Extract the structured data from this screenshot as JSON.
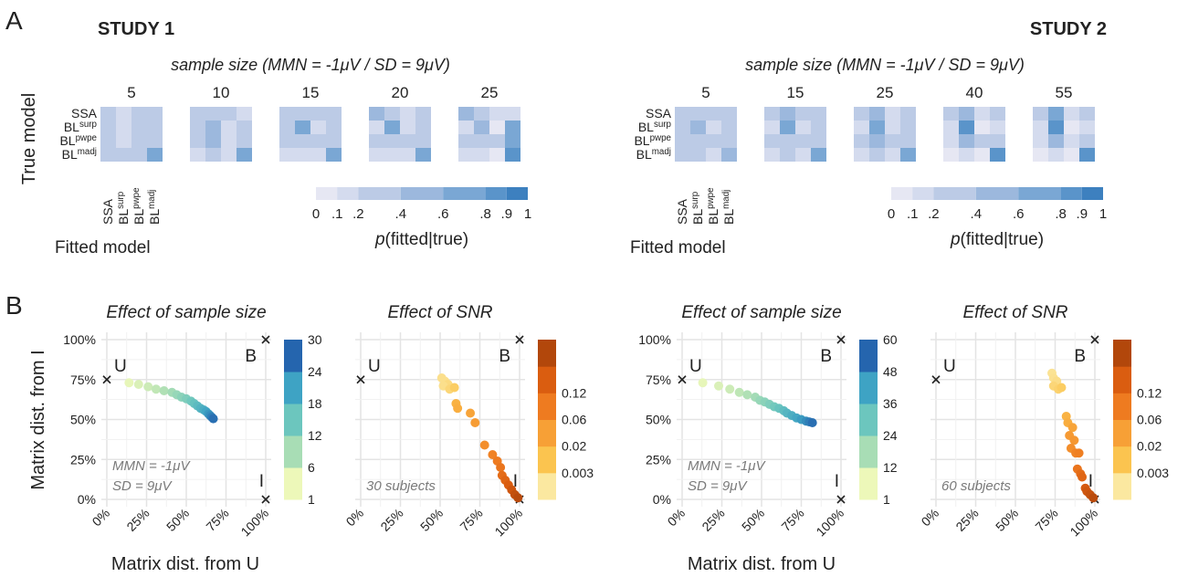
{
  "panel_labels": {
    "a": "A",
    "b": "B"
  },
  "chart_data": [
    {
      "type": "heatmap",
      "study": "STUDY 1",
      "title": "sample size (MMN = -1μV / SD = 9μV)",
      "ylabel": "True model",
      "xlabel": "Fitted model",
      "models": [
        {
          "base": "SSA",
          "sup": ""
        },
        {
          "base": "BL",
          "sup": "surp"
        },
        {
          "base": "BL",
          "sup": "pwpe"
        },
        {
          "base": "BL",
          "sup": "madj"
        }
      ],
      "sample_sizes": [
        "5",
        "10",
        "15",
        "20",
        "25"
      ],
      "matrices": [
        [
          [
            0.3,
            0.15,
            0.3,
            0.3
          ],
          [
            0.3,
            0.15,
            0.3,
            0.3
          ],
          [
            0.3,
            0.15,
            0.3,
            0.3
          ],
          [
            0.2,
            0.2,
            0.2,
            0.6
          ]
        ],
        [
          [
            0.3,
            0.3,
            0.2,
            0.15
          ],
          [
            0.2,
            0.45,
            0.15,
            0.2
          ],
          [
            0.2,
            0.45,
            0.15,
            0.2
          ],
          [
            0.15,
            0.2,
            0.15,
            0.65
          ]
        ],
        [
          [
            0.3,
            0.3,
            0.2,
            0.3
          ],
          [
            0.2,
            0.6,
            0.1,
            0.2
          ],
          [
            0.25,
            0.35,
            0.2,
            0.25
          ],
          [
            0.1,
            0.15,
            0.1,
            0.7
          ]
        ],
        [
          [
            0.5,
            0.25,
            0.1,
            0.2
          ],
          [
            0.15,
            0.6,
            0.1,
            0.2
          ],
          [
            0.3,
            0.35,
            0.2,
            0.2
          ],
          [
            0.1,
            0.15,
            0.1,
            0.7
          ]
        ],
        [
          [
            0.55,
            0.25,
            0.1,
            0.15
          ],
          [
            0.15,
            0.55,
            0.05,
            0.6
          ],
          [
            0.3,
            0.3,
            0.2,
            0.6
          ],
          [
            0.1,
            0.1,
            0.05,
            0.8
          ]
        ]
      ],
      "colorbar": {
        "label_italic": "p",
        "label_rest": "(fitted|true)",
        "breaks": [
          0,
          0.1,
          0.2,
          0.4,
          0.6,
          0.8,
          0.9,
          1
        ],
        "ticks": [
          "0",
          ".1",
          ".2",
          ".4",
          ".6",
          ".8",
          ".9",
          "1"
        ],
        "colors": [
          "#e6e7f3",
          "#d4dbee",
          "#bccbe6",
          "#9cb8dd",
          "#7aa7d4",
          "#5a94ca",
          "#3d80bf"
        ]
      }
    },
    {
      "type": "heatmap",
      "study": "STUDY 2",
      "title": "sample size (MMN = -1μV / SD = 9μV)",
      "ylabel": "",
      "xlabel": "Fitted model",
      "models": [
        {
          "base": "SSA",
          "sup": ""
        },
        {
          "base": "BL",
          "sup": "surp"
        },
        {
          "base": "BL",
          "sup": "pwpe"
        },
        {
          "base": "BL",
          "sup": "madj"
        }
      ],
      "sample_sizes": [
        "5",
        "15",
        "25",
        "40",
        "55"
      ],
      "matrices": [
        [
          [
            0.2,
            0.3,
            0.2,
            0.2
          ],
          [
            0.2,
            0.4,
            0.15,
            0.2
          ],
          [
            0.25,
            0.25,
            0.25,
            0.2
          ],
          [
            0.2,
            0.2,
            0.1,
            0.4
          ]
        ],
        [
          [
            0.2,
            0.4,
            0.2,
            0.3
          ],
          [
            0.15,
            0.6,
            0.1,
            0.2
          ],
          [
            0.2,
            0.35,
            0.2,
            0.2
          ],
          [
            0.1,
            0.2,
            0.1,
            0.65
          ]
        ],
        [
          [
            0.2,
            0.4,
            0.1,
            0.2
          ],
          [
            0.15,
            0.6,
            0.1,
            0.2
          ],
          [
            0.2,
            0.5,
            0.25,
            0.2
          ],
          [
            0.1,
            0.2,
            0.1,
            0.7
          ]
        ],
        [
          [
            0.2,
            0.55,
            0.1,
            0.2
          ],
          [
            0.1,
            0.85,
            0.05,
            0.1
          ],
          [
            0.15,
            0.5,
            0.2,
            0.2
          ],
          [
            0.05,
            0.15,
            0.05,
            0.8
          ]
        ],
        [
          [
            0.2,
            0.7,
            0.1,
            0.2
          ],
          [
            0.1,
            0.85,
            0.05,
            0.1
          ],
          [
            0.1,
            0.55,
            0.15,
            0.2
          ],
          [
            0.05,
            0.1,
            0.05,
            0.85
          ]
        ]
      ],
      "colorbar": {
        "label_italic": "p",
        "label_rest": "(fitted|true)",
        "breaks": [
          0,
          0.1,
          0.2,
          0.4,
          0.6,
          0.8,
          0.9,
          1
        ],
        "ticks": [
          "0",
          ".1",
          ".2",
          ".4",
          ".6",
          ".8",
          ".9",
          "1"
        ],
        "colors": [
          "#e6e7f3",
          "#d4dbee",
          "#bccbe6",
          "#9cb8dd",
          "#7aa7d4",
          "#5a94ca",
          "#3d80bf"
        ]
      }
    },
    {
      "type": "scatter",
      "title": "Effect of sample size",
      "xlabel": "Matrix dist. from U",
      "ylabel": "Matrix dist. from I",
      "xticks": [
        "0%",
        "25%",
        "50%",
        "75%",
        "100%"
      ],
      "yticks": [
        "0%",
        "25%",
        "50%",
        "75%",
        "100%"
      ],
      "xlim": [
        0,
        100
      ],
      "ylim": [
        0,
        100
      ],
      "vertices": [
        {
          "name": "U",
          "x": 0,
          "y": 75
        },
        {
          "name": "B",
          "x": 100,
          "y": 100
        },
        {
          "name": "I",
          "x": 100,
          "y": 0
        }
      ],
      "annotation": [
        "MMN = -1μV",
        "SD = 9μV"
      ],
      "colorbar": {
        "ticks": [
          "1",
          "6",
          "12",
          "18",
          "24",
          "30"
        ],
        "colors": [
          "#edf8b9",
          "#a8ddb5",
          "#6cc6be",
          "#3ea3c4",
          "#2565ae"
        ]
      },
      "points": [
        {
          "x": 14,
          "y": 73,
          "c": 0.02
        },
        {
          "x": 20,
          "y": 72,
          "c": 0.07
        },
        {
          "x": 26,
          "y": 70.5,
          "c": 0.12
        },
        {
          "x": 31,
          "y": 69,
          "c": 0.16
        },
        {
          "x": 36,
          "y": 68,
          "c": 0.22
        },
        {
          "x": 41,
          "y": 67,
          "c": 0.27
        },
        {
          "x": 44,
          "y": 65.5,
          "c": 0.32
        },
        {
          "x": 47,
          "y": 64,
          "c": 0.37
        },
        {
          "x": 50,
          "y": 63,
          "c": 0.42
        },
        {
          "x": 53,
          "y": 61.5,
          "c": 0.48
        },
        {
          "x": 55,
          "y": 60,
          "c": 0.53
        },
        {
          "x": 57,
          "y": 58.5,
          "c": 0.58
        },
        {
          "x": 59,
          "y": 57,
          "c": 0.63
        },
        {
          "x": 61,
          "y": 56,
          "c": 0.68
        },
        {
          "x": 62.5,
          "y": 55,
          "c": 0.73
        },
        {
          "x": 64,
          "y": 53.5,
          "c": 0.79
        },
        {
          "x": 65,
          "y": 52.5,
          "c": 0.84
        },
        {
          "x": 66,
          "y": 51.5,
          "c": 0.9
        },
        {
          "x": 67,
          "y": 50.5,
          "c": 0.96
        }
      ]
    },
    {
      "type": "scatter",
      "title": "Effect of SNR",
      "xlabel": "",
      "ylabel": "",
      "xticks": [
        "0%",
        "25%",
        "50%",
        "75%",
        "100%"
      ],
      "yticks": [],
      "xlim": [
        0,
        100
      ],
      "ylim": [
        0,
        100
      ],
      "vertices": [
        {
          "name": "U",
          "x": 0,
          "y": 75
        },
        {
          "name": "B",
          "x": 100,
          "y": 100
        },
        {
          "name": "I",
          "x": 100,
          "y": 0
        }
      ],
      "annotation": [
        "30 subjects"
      ],
      "colorbar": {
        "ticks": [
          "0.003",
          "0.02",
          "0.06",
          "0.12"
        ],
        "colors": [
          "#fbe8a0",
          "#fbc44f",
          "#f7a036",
          "#ee7b20",
          "#da5d10",
          "#b2470b"
        ]
      },
      "points": [
        {
          "x": 51,
          "y": 76,
          "c": 0.05
        },
        {
          "x": 53,
          "y": 74,
          "c": 0.05
        },
        {
          "x": 55,
          "y": 72,
          "c": 0.08
        },
        {
          "x": 52,
          "y": 71,
          "c": 0.05
        },
        {
          "x": 56,
          "y": 69,
          "c": 0.1
        },
        {
          "x": 59,
          "y": 70,
          "c": 0.15
        },
        {
          "x": 60,
          "y": 60,
          "c": 0.3
        },
        {
          "x": 61,
          "y": 57,
          "c": 0.32
        },
        {
          "x": 69,
          "y": 54,
          "c": 0.38
        },
        {
          "x": 72,
          "y": 48,
          "c": 0.42
        },
        {
          "x": 78,
          "y": 34,
          "c": 0.5
        },
        {
          "x": 83,
          "y": 28,
          "c": 0.56
        },
        {
          "x": 86,
          "y": 24,
          "c": 0.6
        },
        {
          "x": 88,
          "y": 20,
          "c": 0.64
        },
        {
          "x": 89,
          "y": 15,
          "c": 0.7
        },
        {
          "x": 91,
          "y": 12,
          "c": 0.75
        },
        {
          "x": 93,
          "y": 9,
          "c": 0.8
        },
        {
          "x": 95,
          "y": 6,
          "c": 0.86
        },
        {
          "x": 97,
          "y": 3,
          "c": 0.92
        },
        {
          "x": 99,
          "y": 1,
          "c": 0.97
        }
      ]
    },
    {
      "type": "scatter",
      "title": "Effect of sample size",
      "xlabel": "Matrix dist. from U",
      "ylabel": "",
      "xticks": [
        "0%",
        "25%",
        "50%",
        "75%",
        "100%"
      ],
      "yticks": [
        "0%",
        "25%",
        "50%",
        "75%",
        "100%"
      ],
      "xlim": [
        0,
        100
      ],
      "ylim": [
        0,
        100
      ],
      "vertices": [
        {
          "name": "U",
          "x": 0,
          "y": 75
        },
        {
          "name": "B",
          "x": 100,
          "y": 100
        },
        {
          "name": "I",
          "x": 100,
          "y": 0
        }
      ],
      "annotation": [
        "MMN = -1μV",
        "SD = 9μV"
      ],
      "colorbar": {
        "ticks": [
          "1",
          "12",
          "24",
          "36",
          "48",
          "60"
        ],
        "colors": [
          "#edf8b9",
          "#a8ddb5",
          "#6cc6be",
          "#3ea3c4",
          "#2565ae"
        ]
      },
      "points": [
        {
          "x": 13,
          "y": 73,
          "c": 0.02
        },
        {
          "x": 23,
          "y": 71,
          "c": 0.07
        },
        {
          "x": 30,
          "y": 69,
          "c": 0.12
        },
        {
          "x": 36,
          "y": 67,
          "c": 0.17
        },
        {
          "x": 41,
          "y": 65.5,
          "c": 0.22
        },
        {
          "x": 46,
          "y": 64,
          "c": 0.27
        },
        {
          "x": 49,
          "y": 62,
          "c": 0.32
        },
        {
          "x": 52,
          "y": 61,
          "c": 0.37
        },
        {
          "x": 55,
          "y": 59.5,
          "c": 0.42
        },
        {
          "x": 58,
          "y": 58,
          "c": 0.47
        },
        {
          "x": 61,
          "y": 57,
          "c": 0.52
        },
        {
          "x": 64,
          "y": 55.5,
          "c": 0.57
        },
        {
          "x": 66,
          "y": 54,
          "c": 0.62
        },
        {
          "x": 69,
          "y": 52.5,
          "c": 0.67
        },
        {
          "x": 72,
          "y": 51,
          "c": 0.72
        },
        {
          "x": 75,
          "y": 50,
          "c": 0.78
        },
        {
          "x": 78,
          "y": 49,
          "c": 0.84
        },
        {
          "x": 80,
          "y": 48.5,
          "c": 0.9
        },
        {
          "x": 82,
          "y": 48,
          "c": 0.96
        }
      ]
    },
    {
      "type": "scatter",
      "title": "Effect of SNR",
      "xlabel": "",
      "ylabel": "",
      "xticks": [
        "0%",
        "25%",
        "50%",
        "75%",
        "100%"
      ],
      "yticks": [],
      "xlim": [
        0,
        100
      ],
      "ylim": [
        0,
        100
      ],
      "vertices": [
        {
          "name": "U",
          "x": 0,
          "y": 75
        },
        {
          "name": "B",
          "x": 100,
          "y": 100
        },
        {
          "name": "I",
          "x": 100,
          "y": 0
        }
      ],
      "annotation": [
        "60 subjects"
      ],
      "colorbar": {
        "ticks": [
          "0.003",
          "0.02",
          "0.06",
          "0.12"
        ],
        "colors": [
          "#fbe8a0",
          "#fbc44f",
          "#f7a036",
          "#ee7b20",
          "#da5d10",
          "#b2470b"
        ]
      },
      "points": [
        {
          "x": 73,
          "y": 79,
          "c": 0.03
        },
        {
          "x": 74,
          "y": 76,
          "c": 0.04
        },
        {
          "x": 76,
          "y": 74,
          "c": 0.06
        },
        {
          "x": 74,
          "y": 71,
          "c": 0.1
        },
        {
          "x": 77,
          "y": 69,
          "c": 0.12
        },
        {
          "x": 79,
          "y": 70,
          "c": 0.15
        },
        {
          "x": 82,
          "y": 52,
          "c": 0.3
        },
        {
          "x": 83,
          "y": 48,
          "c": 0.33
        },
        {
          "x": 86,
          "y": 45,
          "c": 0.38
        },
        {
          "x": 84,
          "y": 40,
          "c": 0.43
        },
        {
          "x": 87,
          "y": 37,
          "c": 0.45
        },
        {
          "x": 85,
          "y": 32,
          "c": 0.5
        },
        {
          "x": 88,
          "y": 29,
          "c": 0.55
        },
        {
          "x": 90,
          "y": 29,
          "c": 0.58
        },
        {
          "x": 89,
          "y": 19,
          "c": 0.64
        },
        {
          "x": 91,
          "y": 16,
          "c": 0.7
        },
        {
          "x": 92,
          "y": 14,
          "c": 0.74
        },
        {
          "x": 94,
          "y": 7,
          "c": 0.82
        },
        {
          "x": 95,
          "y": 5,
          "c": 0.86
        },
        {
          "x": 97,
          "y": 3,
          "c": 0.9
        },
        {
          "x": 99,
          "y": 1,
          "c": 0.96
        }
      ]
    }
  ]
}
